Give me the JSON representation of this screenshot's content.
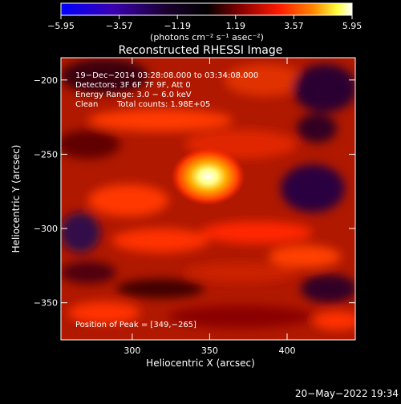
{
  "chart_data": {
    "type": "heatmap",
    "title": "Reconstructed RHESSI Image",
    "xlabel": "Heliocentric X (arcsec)",
    "ylabel": "Heliocentric Y (arcsec)",
    "xlim": [
      254,
      444
    ],
    "ylim": [
      -375,
      -185
    ],
    "x_ticks": [
      300,
      350,
      400
    ],
    "y_ticks": [
      -200,
      -250,
      -300,
      -350
    ],
    "x_tick_labels": [
      "300",
      "350",
      "400"
    ],
    "y_tick_labels": [
      "−200",
      "−250",
      "−300",
      "−350"
    ],
    "colorbar": {
      "ticks": [
        -5.95,
        -3.57,
        -1.19,
        1.19,
        3.57,
        5.95
      ],
      "tick_labels": [
        "−5.95",
        "−3.57",
        "−1.19",
        "1.19",
        "3.57",
        "5.95"
      ],
      "range": [
        -5.95,
        5.95
      ],
      "units_label": "(photons cm⁻² s⁻¹ asec⁻²)",
      "colors": [
        "#0000ff",
        "#2a0070",
        "#000000",
        "#8b0000",
        "#ff2200",
        "#ff8800",
        "#ffff66",
        "#ffffff"
      ]
    },
    "peak": {
      "x": 349,
      "y": -265,
      "value": 5.95
    },
    "annotations": {
      "time_range": "19−Dec−2014 03:28:08.000 to 03:34:08.000",
      "detectors": "Detectors: 3F 6F 7F 9F, Att 0",
      "energy": "Energy Range: 3.0 − 6.0 keV",
      "clean": "Clean",
      "total_counts": "Total counts: 1.98E+05",
      "peak_position": "Position of Peak = [349,−265]"
    }
  },
  "footer": {
    "timestamp": "20−May−2022 19:34"
  }
}
